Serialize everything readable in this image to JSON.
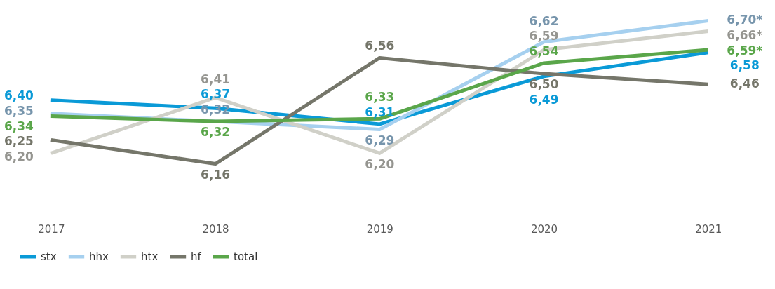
{
  "chart_data": {
    "type": "line",
    "categories": [
      "2017",
      "2018",
      "2019",
      "2020",
      "2021"
    ],
    "series": [
      {
        "name": "stx",
        "color": "#0a9ad7",
        "values": [
          6.4,
          6.37,
          6.31,
          6.49,
          6.58
        ],
        "value_labels": [
          "6,40",
          "6,37",
          "6,31",
          "6,49",
          "6,58"
        ]
      },
      {
        "name": "hhx",
        "color": "#a6d0ef",
        "values": [
          6.35,
          6.32,
          6.29,
          6.62,
          6.7
        ],
        "value_labels": [
          "6,35",
          "6,32",
          "6,29",
          "6,62",
          "6,70*"
        ]
      },
      {
        "name": "htx",
        "color": "#d0d0c8",
        "values": [
          6.2,
          6.41,
          6.2,
          6.59,
          6.66
        ],
        "value_labels": [
          "6,20",
          "6,41",
          "6,20",
          "6,59",
          "6,66*"
        ]
      },
      {
        "name": "hf",
        "color": "#75766a",
        "values": [
          6.25,
          6.16,
          6.56,
          6.5,
          6.46
        ],
        "value_labels": [
          "6,25",
          "6,16",
          "6,56",
          "6,50",
          "6,46"
        ]
      },
      {
        "name": "total",
        "color": "#5aa64a",
        "values": [
          6.34,
          6.32,
          6.33,
          6.54,
          6.59
        ],
        "value_labels": [
          "6,34",
          "6,32",
          "6,33",
          "6,54",
          "6,59*"
        ]
      }
    ],
    "tick_labels": "x",
    "grid": false,
    "legend": "bottom",
    "marker": "none",
    "line_style": "solid"
  }
}
